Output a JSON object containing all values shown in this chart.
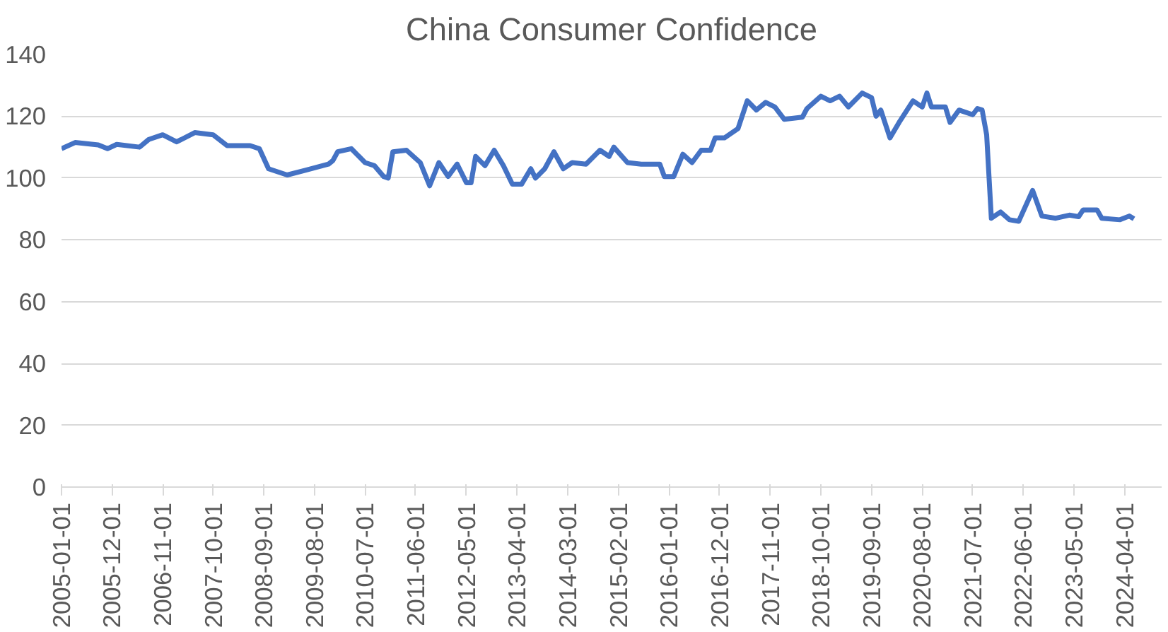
{
  "chart_data": {
    "type": "line",
    "title": "China Consumer Confidence",
    "x": [
      "2005-01",
      "2005-04",
      "2005-09",
      "2005-11",
      "2006-01",
      "2006-06",
      "2006-08",
      "2006-11",
      "2007-02",
      "2007-06",
      "2007-10",
      "2008-01",
      "2008-06",
      "2008-08",
      "2008-10",
      "2009-02",
      "2009-06",
      "2009-11",
      "2009-12",
      "2010-01",
      "2010-04",
      "2010-07",
      "2010-09",
      "2010-11",
      "2010-12",
      "2011-01",
      "2011-04",
      "2011-07",
      "2011-09",
      "2011-11",
      "2012-01",
      "2012-03",
      "2012-05",
      "2012-06",
      "2012-07",
      "2012-09",
      "2012-11",
      "2013-01",
      "2013-03",
      "2013-05",
      "2013-07",
      "2013-08",
      "2013-10",
      "2013-12",
      "2014-02",
      "2014-04",
      "2014-07",
      "2014-10",
      "2014-12",
      "2015-01",
      "2015-04",
      "2015-07",
      "2015-11",
      "2015-12",
      "2016-02",
      "2016-04",
      "2016-06",
      "2016-08",
      "2016-10",
      "2016-11",
      "2017-01",
      "2017-04",
      "2017-06",
      "2017-08",
      "2017-10",
      "2017-12",
      "2018-02",
      "2018-06",
      "2018-07",
      "2018-10",
      "2018-12",
      "2019-02",
      "2019-04",
      "2019-07",
      "2019-09",
      "2019-10",
      "2019-11",
      "2020-01",
      "2020-03",
      "2020-06",
      "2020-08",
      "2020-09",
      "2020-10",
      "2021-01",
      "2021-02",
      "2021-04",
      "2021-07",
      "2021-08",
      "2021-09",
      "2021-10",
      "2021-11",
      "2022-01",
      "2022-03",
      "2022-05",
      "2022-08",
      "2022-10",
      "2023-01",
      "2023-04",
      "2023-06",
      "2023-07",
      "2023-10",
      "2023-11",
      "2024-03",
      "2024-05",
      "2024-06"
    ],
    "series": [
      {
        "color": "#4472c4",
        "values": [
          109.5,
          111.5,
          110.7,
          109.5,
          110.9,
          110,
          112.5,
          114,
          111.7,
          114.7,
          114,
          110.5,
          110.5,
          109.5,
          103,
          101,
          102.5,
          104.5,
          105.7,
          108.5,
          109.5,
          105,
          104,
          100.5,
          100,
          108.5,
          109,
          105,
          97.5,
          105,
          100.5,
          104.5,
          98.5,
          98.5,
          107,
          104,
          109,
          104,
          98,
          98,
          103,
          100,
          103,
          108.5,
          103,
          105,
          104.5,
          109,
          107,
          110,
          105,
          104.5,
          104.5,
          100.5,
          100.5,
          107.7,
          105,
          109,
          109,
          113,
          113,
          116,
          125,
          122,
          124.5,
          123,
          119,
          119.7,
          122.5,
          126.5,
          125,
          126.5,
          123,
          127.5,
          126,
          120,
          122,
          113,
          118,
          125,
          123,
          127.5,
          123,
          123,
          118,
          122,
          120.5,
          122.5,
          122,
          114,
          87,
          89,
          86.5,
          86,
          96,
          87.7,
          87,
          88,
          87.5,
          89.7,
          89.7,
          87,
          86.5,
          87.7,
          86.8
        ]
      }
    ],
    "xlim": [
      "2005-01-01",
      "2024-12-01"
    ],
    "xticks": [
      "2005-01-01",
      "2005-12-01",
      "2006-11-01",
      "2007-10-01",
      "2008-09-01",
      "2009-08-01",
      "2010-07-01",
      "2011-06-01",
      "2012-05-01",
      "2013-04-01",
      "2014-03-01",
      "2015-02-01",
      "2016-01-01",
      "2016-12-01",
      "2017-11-01",
      "2018-10-01",
      "2019-09-01",
      "2020-08-01",
      "2021-07-01",
      "2022-06-01",
      "2023-05-01",
      "2024-04-01"
    ],
    "ylim": [
      0,
      140
    ],
    "yticks": [
      0,
      20,
      40,
      60,
      80,
      100,
      120,
      140
    ],
    "grid": "y",
    "marker": "none",
    "line_style": "solid"
  }
}
